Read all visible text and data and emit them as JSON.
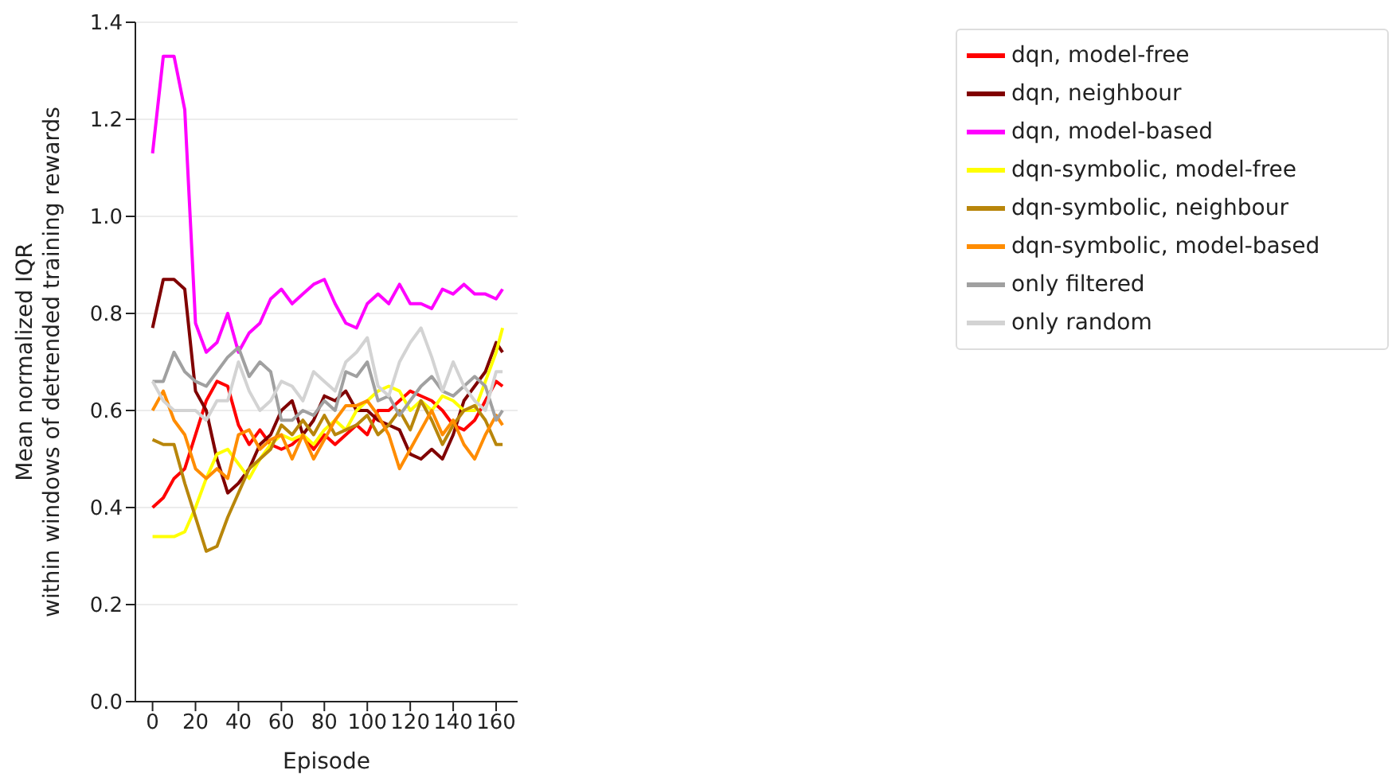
{
  "chart_data": {
    "type": "line",
    "xlabel": "Episode",
    "ylabel": "Mean normalized IQR\nwithin windows of detrended training rewards",
    "x": [
      0,
      5,
      10,
      15,
      20,
      25,
      30,
      35,
      40,
      45,
      50,
      55,
      60,
      65,
      70,
      75,
      80,
      85,
      90,
      95,
      100,
      105,
      110,
      115,
      120,
      125,
      130,
      135,
      140,
      145,
      150,
      155,
      160,
      163
    ],
    "series": [
      {
        "name": "dqn, model-free",
        "color": "#ff0000",
        "values": [
          0.4,
          0.42,
          0.46,
          0.48,
          0.55,
          0.62,
          0.66,
          0.65,
          0.57,
          0.53,
          0.56,
          0.53,
          0.52,
          0.53,
          0.55,
          0.52,
          0.55,
          0.53,
          0.55,
          0.57,
          0.55,
          0.6,
          0.6,
          0.62,
          0.64,
          0.63,
          0.62,
          0.6,
          0.57,
          0.56,
          0.58,
          0.62,
          0.66,
          0.65
        ]
      },
      {
        "name": "dqn, neighbour",
        "color": "#800000",
        "values": [
          0.77,
          0.87,
          0.87,
          0.85,
          0.64,
          0.6,
          0.5,
          0.43,
          0.45,
          0.48,
          0.53,
          0.55,
          0.6,
          0.62,
          0.55,
          0.58,
          0.63,
          0.62,
          0.64,
          0.6,
          0.6,
          0.58,
          0.57,
          0.56,
          0.51,
          0.5,
          0.52,
          0.5,
          0.55,
          0.62,
          0.65,
          0.68,
          0.74,
          0.72
        ]
      },
      {
        "name": "dqn, model-based",
        "color": "#ff00ff",
        "values": [
          1.13,
          1.33,
          1.33,
          1.22,
          0.78,
          0.72,
          0.74,
          0.8,
          0.72,
          0.76,
          0.78,
          0.83,
          0.85,
          0.82,
          0.84,
          0.86,
          0.87,
          0.82,
          0.78,
          0.77,
          0.82,
          0.84,
          0.82,
          0.86,
          0.82,
          0.82,
          0.81,
          0.85,
          0.84,
          0.86,
          0.84,
          0.84,
          0.83,
          0.85
        ]
      },
      {
        "name": "dqn-symbolic, model-free",
        "color": "#ffff00",
        "values": [
          0.34,
          0.34,
          0.34,
          0.35,
          0.4,
          0.46,
          0.51,
          0.52,
          0.49,
          0.46,
          0.5,
          0.53,
          0.55,
          0.54,
          0.55,
          0.53,
          0.56,
          0.58,
          0.56,
          0.6,
          0.62,
          0.64,
          0.65,
          0.64,
          0.6,
          0.62,
          0.6,
          0.63,
          0.62,
          0.6,
          0.6,
          0.66,
          0.72,
          0.77
        ]
      },
      {
        "name": "dqn-symbolic, neighbour",
        "color": "#b8860b",
        "values": [
          0.54,
          0.53,
          0.53,
          0.45,
          0.38,
          0.31,
          0.32,
          0.38,
          0.43,
          0.48,
          0.5,
          0.52,
          0.57,
          0.55,
          0.58,
          0.55,
          0.59,
          0.55,
          0.56,
          0.57,
          0.59,
          0.55,
          0.57,
          0.6,
          0.56,
          0.62,
          0.58,
          0.53,
          0.57,
          0.6,
          0.61,
          0.58,
          0.53,
          0.53
        ]
      },
      {
        "name": "dqn-symbolic, model-based",
        "color": "#ff8c00",
        "values": [
          0.6,
          0.64,
          0.58,
          0.55,
          0.48,
          0.46,
          0.48,
          0.46,
          0.55,
          0.56,
          0.52,
          0.54,
          0.55,
          0.5,
          0.55,
          0.5,
          0.54,
          0.58,
          0.61,
          0.61,
          0.62,
          0.59,
          0.55,
          0.48,
          0.52,
          0.56,
          0.6,
          0.55,
          0.58,
          0.53,
          0.5,
          0.55,
          0.59,
          0.57
        ]
      },
      {
        "name": "only filtered",
        "color": "#a0a0a0",
        "values": [
          0.66,
          0.66,
          0.72,
          0.68,
          0.66,
          0.65,
          0.68,
          0.71,
          0.73,
          0.67,
          0.7,
          0.68,
          0.58,
          0.58,
          0.6,
          0.59,
          0.62,
          0.6,
          0.68,
          0.67,
          0.7,
          0.62,
          0.63,
          0.59,
          0.62,
          0.65,
          0.67,
          0.64,
          0.63,
          0.65,
          0.67,
          0.65,
          0.58,
          0.6
        ]
      },
      {
        "name": "only random",
        "color": "#d3d3d3",
        "values": [
          0.66,
          0.62,
          0.6,
          0.6,
          0.6,
          0.58,
          0.62,
          0.62,
          0.7,
          0.64,
          0.6,
          0.62,
          0.66,
          0.65,
          0.62,
          0.68,
          0.66,
          0.64,
          0.7,
          0.72,
          0.75,
          0.65,
          0.63,
          0.7,
          0.74,
          0.77,
          0.71,
          0.64,
          0.7,
          0.65,
          0.62,
          0.6,
          0.68,
          0.68
        ]
      }
    ],
    "xlim": [
      -8,
      170
    ],
    "xticks": [
      0,
      20,
      40,
      60,
      80,
      100,
      120,
      140,
      160
    ],
    "ylim": [
      0,
      1.4
    ],
    "yticks": [
      {
        "value": 0,
        "label": "0.0"
      },
      {
        "value": 0.2,
        "label": "0.2"
      },
      {
        "value": 0.4,
        "label": "0.4"
      },
      {
        "value": 0.6,
        "label": "0.6"
      },
      {
        "value": 0.8,
        "label": "0.8"
      },
      {
        "value": 1.0,
        "label": "1.0"
      },
      {
        "value": 1.2,
        "label": "1.2"
      },
      {
        "value": 1.4,
        "label": "1.4"
      }
    ],
    "grid": "y",
    "legend": "top right",
    "line_style": "solid"
  }
}
